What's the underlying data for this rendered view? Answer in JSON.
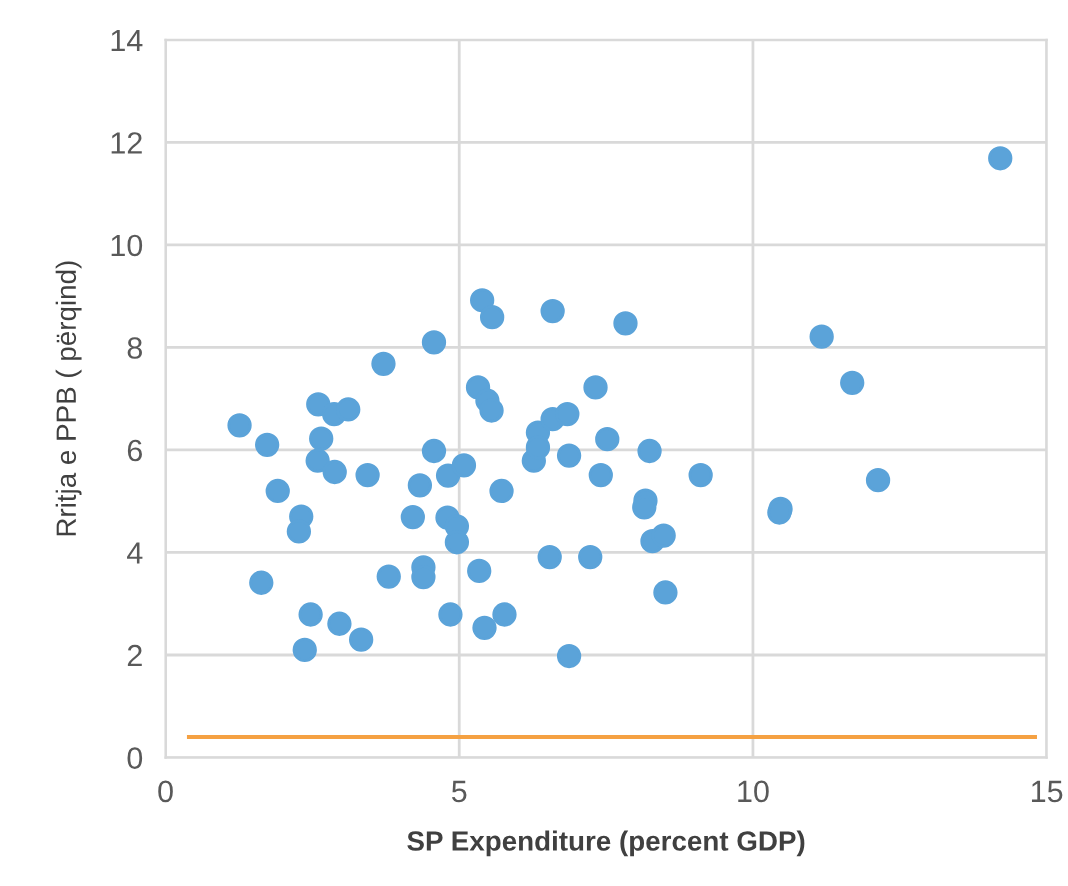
{
  "chart_data": {
    "type": "scatter",
    "xlabel": "SP Expenditure (percent GDP)",
    "ylabel": "Rritja e PPB ( përqind)",
    "xlim": [
      0,
      15
    ],
    "ylim": [
      0,
      14
    ],
    "xticks": [
      0,
      5,
      10,
      15
    ],
    "yticks": [
      0,
      2,
      4,
      6,
      8,
      10,
      12,
      14
    ],
    "grid": true,
    "marker": "circle",
    "series": [
      {
        "color": "#5ba3d9",
        "x": [
          1.26,
          1.73,
          1.91,
          2.31,
          2.27,
          1.63,
          2.47,
          2.37,
          2.96,
          3.33,
          2.6,
          2.87,
          3.11,
          2.65,
          2.59,
          2.88,
          3.44,
          3.71,
          4.57,
          4.57,
          4.33,
          4.21,
          3.8,
          4.39,
          4.39,
          4.85,
          4.81,
          5.08,
          4.8,
          4.96,
          4.96,
          5.34,
          5.43,
          5.39,
          5.56,
          5.32,
          5.48,
          5.55,
          5.72,
          6.59,
          7.83,
          7.32,
          6.34,
          6.59,
          6.84,
          7.52,
          8.24,
          6.87,
          6.27,
          6.34,
          7.41,
          9.11,
          8.17,
          8.15,
          8.29,
          8.48,
          6.54,
          7.23,
          8.51,
          5.77,
          6.87,
          10.47,
          10.45,
          14.21,
          11.17,
          11.69,
          12.13
        ],
        "values": [
          6.48,
          6.1,
          5.2,
          4.7,
          4.41,
          3.41,
          2.79,
          2.1,
          2.61,
          2.3,
          6.89,
          6.7,
          6.79,
          6.22,
          5.79,
          5.57,
          5.51,
          7.68,
          8.1,
          5.98,
          5.31,
          4.69,
          3.53,
          3.71,
          3.52,
          2.79,
          5.5,
          5.7,
          4.68,
          4.51,
          4.2,
          3.64,
          2.53,
          8.92,
          8.59,
          7.22,
          6.96,
          6.77,
          5.2,
          8.71,
          8.47,
          7.22,
          6.34,
          6.6,
          6.7,
          6.21,
          5.98,
          5.89,
          5.79,
          6.05,
          5.51,
          5.51,
          5.01,
          4.88,
          4.22,
          4.33,
          3.91,
          3.91,
          3.22,
          2.79,
          1.98,
          4.85,
          4.78,
          11.69,
          8.21,
          7.31,
          5.41
        ]
      },
      {
        "type": "line",
        "color": "#f5a142",
        "marker": "none",
        "x": [
          0.4,
          14.8
        ],
        "values": [
          0.4,
          0.4
        ]
      }
    ]
  }
}
